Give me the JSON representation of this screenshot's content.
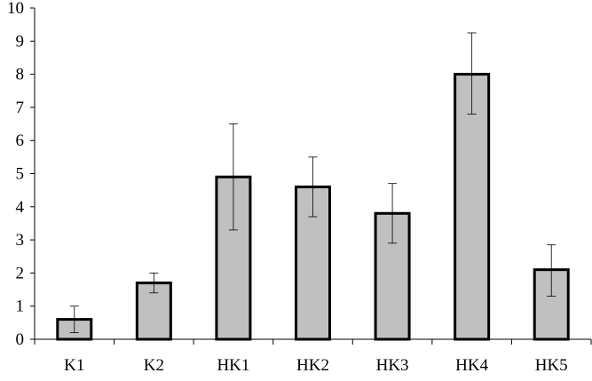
{
  "chart_data": {
    "type": "bar",
    "categories": [
      "K1",
      "K2",
      "HK1",
      "HK2",
      "HK3",
      "HK4",
      "HK5"
    ],
    "values": [
      0.6,
      1.7,
      4.9,
      4.6,
      3.8,
      8.0,
      2.1
    ],
    "error_low": [
      0.2,
      1.4,
      3.3,
      3.7,
      2.9,
      6.8,
      1.3
    ],
    "error_high": [
      1.0,
      2.0,
      6.5,
      5.5,
      4.7,
      9.25,
      2.85
    ],
    "ylim": [
      0,
      10
    ],
    "yticks": [
      "0",
      "1",
      "2",
      "3",
      "4",
      "5",
      "6",
      "7",
      "8",
      "9",
      "10"
    ],
    "title": "",
    "xlabel": "",
    "ylabel": "",
    "grid": false,
    "bar_color": "#c0c0c0",
    "bar_edge_color": "#000000"
  }
}
